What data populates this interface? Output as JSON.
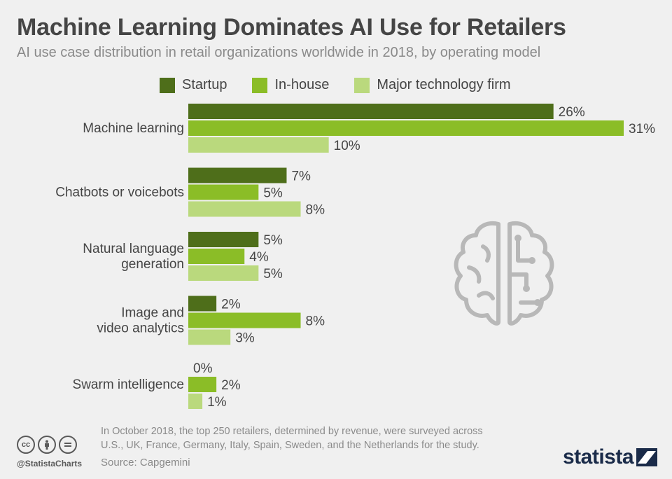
{
  "header": {
    "title": "Machine Learning Dominates AI Use for Retailers",
    "subtitle": "AI use case distribution in retail organizations worldwide in 2018, by operating model"
  },
  "chart_data": {
    "type": "bar",
    "orientation": "horizontal",
    "categories": [
      "Machine learning",
      "Chatbots or voicebots",
      "Natural language generation",
      "Image and video analytics",
      "Swarm intelligence"
    ],
    "series": [
      {
        "name": "Startup",
        "values": [
          26,
          7,
          5,
          2,
          0
        ],
        "color": "#4e6e1a"
      },
      {
        "name": "In-house",
        "values": [
          31,
          5,
          4,
          8,
          2
        ],
        "color": "#8bbd27"
      },
      {
        "name": "Major technology firm",
        "values": [
          10,
          8,
          5,
          3,
          1
        ],
        "color": "#bad97d"
      }
    ],
    "value_suffix": "%",
    "xlim": [
      0,
      31
    ],
    "grid": false,
    "legend_position": "top"
  },
  "footer": {
    "note_line1": "In October 2018, the top 250 retailers, determined by revenue, were surveyed across",
    "note_line2": "U.S., UK, France, Germany, Italy, Spain, Sweden, and the Netherlands for the study.",
    "source": "Source: Capgemini",
    "handle": "@StatistaCharts",
    "logo": "statista",
    "cc_icons": [
      "cc-icon",
      "by-icon",
      "nd-icon"
    ]
  },
  "decoration": {
    "icon": "brain-circuit-icon",
    "color": "#b8b8b8"
  }
}
